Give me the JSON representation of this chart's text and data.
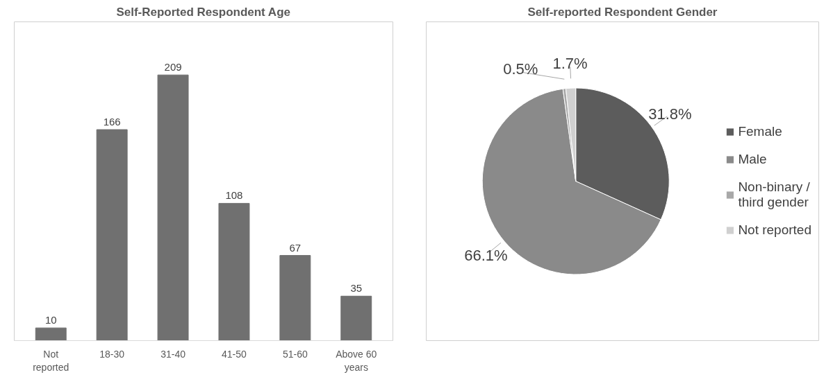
{
  "chart_data": [
    {
      "type": "bar",
      "title": "Self-Reported Respondent Age",
      "categories": [
        "Not reported",
        "18-30",
        "31-40",
        "41-50",
        "51-60",
        "Above 60 years"
      ],
      "values": [
        10,
        166,
        209,
        108,
        67,
        35
      ],
      "color": "#707070",
      "data_labels": true
    },
    {
      "type": "pie",
      "title": "Self-reported Respondent Gender",
      "categories": [
        "Female",
        "Male",
        "Non-binary / third gender",
        "Not reported"
      ],
      "values": [
        31.8,
        66.1,
        0.5,
        1.7
      ],
      "value_labels": [
        "31.8%",
        "66.1%",
        "0.5%",
        "1.7%"
      ],
      "colors": [
        "#5c5c5c",
        "#8a8a8a",
        "#a8a8a8",
        "#d0d0d0"
      ],
      "legend": "right"
    }
  ]
}
